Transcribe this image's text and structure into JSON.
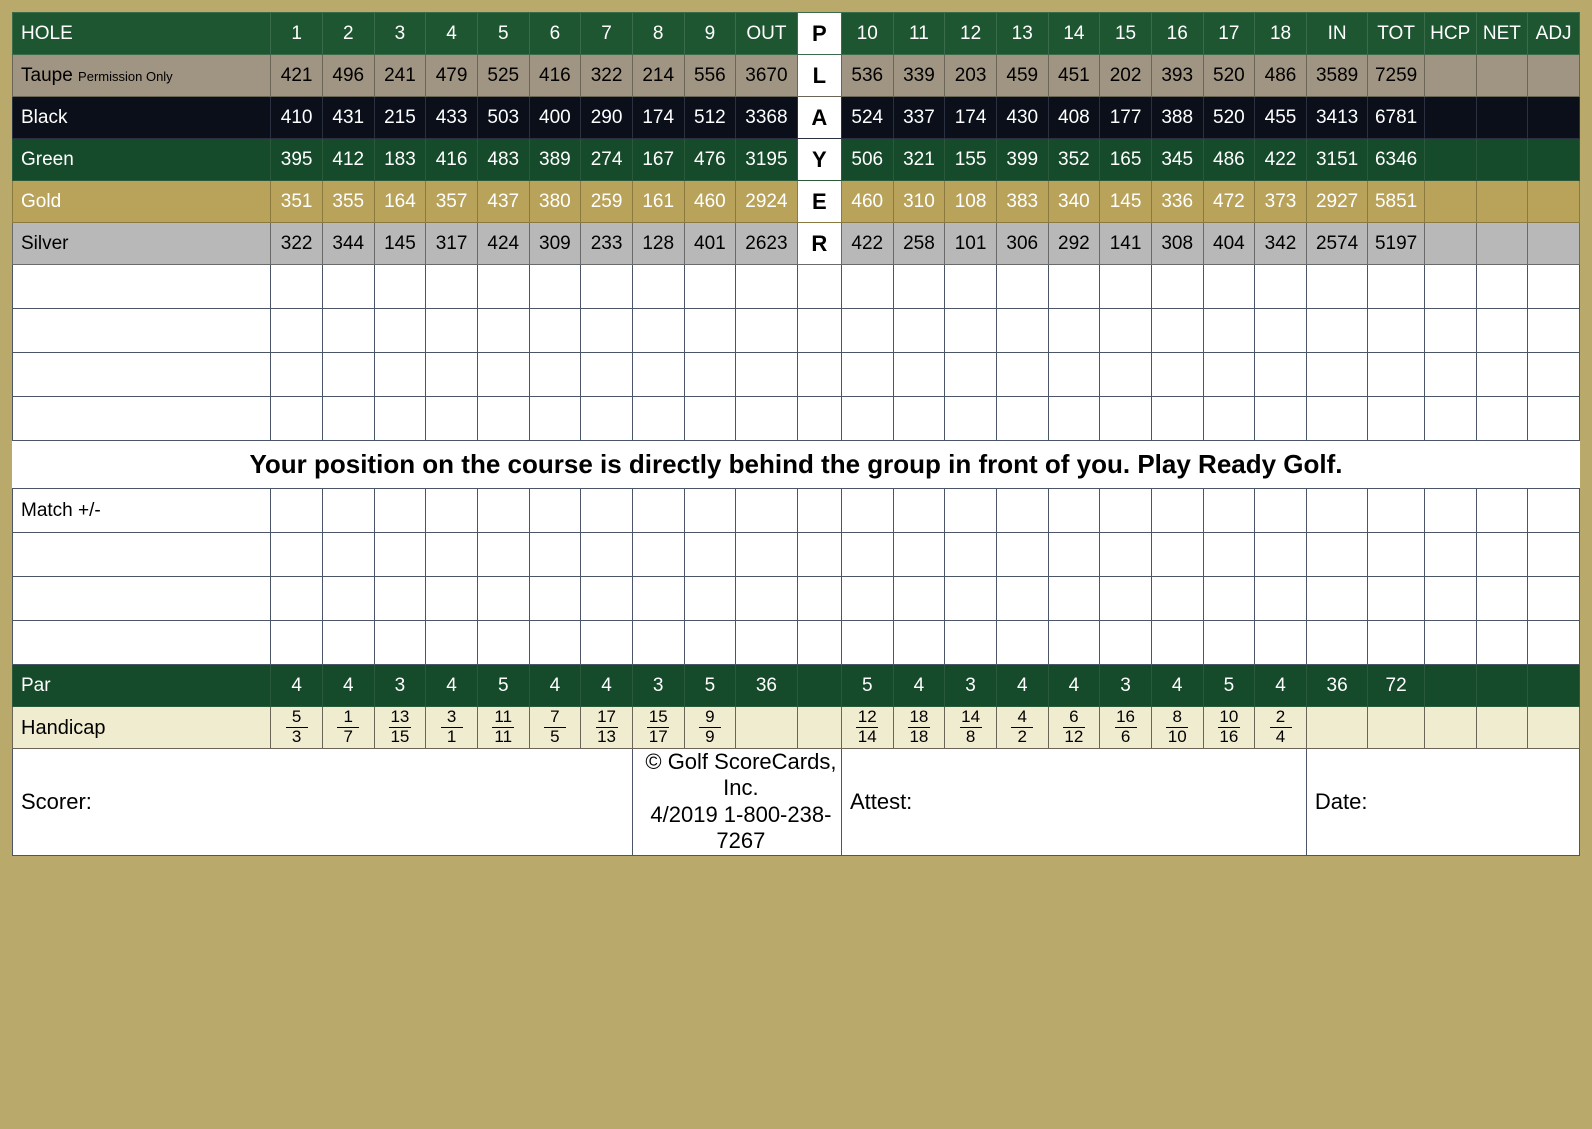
{
  "header": {
    "hole_label": "HOLE",
    "front9": [
      "1",
      "2",
      "3",
      "4",
      "5",
      "6",
      "7",
      "8",
      "9"
    ],
    "out_label": "OUT",
    "player_letters": [
      "P",
      "L",
      "A",
      "Y",
      "E",
      "R"
    ],
    "back9": [
      "10",
      "11",
      "12",
      "13",
      "14",
      "15",
      "16",
      "17",
      "18"
    ],
    "in_label": "IN",
    "tot_label": "TOT",
    "hcp_label": "HCP",
    "net_label": "NET",
    "adj_label": "ADJ"
  },
  "tees": [
    {
      "name": "Taupe",
      "sub": "Permission Only",
      "row_class": "row-taupe",
      "front": [
        "421",
        "496",
        "241",
        "479",
        "525",
        "416",
        "322",
        "214",
        "556"
      ],
      "out": "3670",
      "back": [
        "536",
        "339",
        "203",
        "459",
        "451",
        "202",
        "393",
        "520",
        "486"
      ],
      "in": "3589",
      "tot": "7259"
    },
    {
      "name": "Black",
      "sub": "",
      "row_class": "row-black",
      "front": [
        "410",
        "431",
        "215",
        "433",
        "503",
        "400",
        "290",
        "174",
        "512"
      ],
      "out": "3368",
      "back": [
        "524",
        "337",
        "174",
        "430",
        "408",
        "177",
        "388",
        "520",
        "455"
      ],
      "in": "3413",
      "tot": "6781"
    },
    {
      "name": "Green",
      "sub": "",
      "row_class": "row-green",
      "front": [
        "395",
        "412",
        "183",
        "416",
        "483",
        "389",
        "274",
        "167",
        "476"
      ],
      "out": "3195",
      "back": [
        "506",
        "321",
        "155",
        "399",
        "352",
        "165",
        "345",
        "486",
        "422"
      ],
      "in": "3151",
      "tot": "6346"
    },
    {
      "name": "Gold",
      "sub": "",
      "row_class": "row-gold",
      "front": [
        "351",
        "355",
        "164",
        "357",
        "437",
        "380",
        "259",
        "161",
        "460"
      ],
      "out": "2924",
      "back": [
        "460",
        "310",
        "108",
        "383",
        "340",
        "145",
        "336",
        "472",
        "373"
      ],
      "in": "2927",
      "tot": "5851"
    },
    {
      "name": "Silver",
      "sub": "",
      "row_class": "row-silver",
      "front": [
        "322",
        "344",
        "145",
        "317",
        "424",
        "309",
        "233",
        "128",
        "401"
      ],
      "out": "2623",
      "back": [
        "422",
        "258",
        "101",
        "306",
        "292",
        "141",
        "308",
        "404",
        "342"
      ],
      "in": "2574",
      "tot": "5197"
    }
  ],
  "message": "Your position on the course is directly behind the group in front of you. Play Ready Golf.",
  "match_label": "Match +/-",
  "par": {
    "label": "Par",
    "front": [
      "4",
      "4",
      "3",
      "4",
      "5",
      "4",
      "4",
      "3",
      "5"
    ],
    "out": "36",
    "back": [
      "5",
      "4",
      "3",
      "4",
      "4",
      "3",
      "4",
      "5",
      "4"
    ],
    "in": "36",
    "tot": "72"
  },
  "handicap": {
    "label": "Handicap",
    "front": [
      {
        "t": "5",
        "b": "3"
      },
      {
        "t": "1",
        "b": "7"
      },
      {
        "t": "13",
        "b": "15"
      },
      {
        "t": "3",
        "b": "1"
      },
      {
        "t": "11",
        "b": "11"
      },
      {
        "t": "7",
        "b": "5"
      },
      {
        "t": "17",
        "b": "13"
      },
      {
        "t": "15",
        "b": "17"
      },
      {
        "t": "9",
        "b": "9"
      }
    ],
    "back": [
      {
        "t": "12",
        "b": "14"
      },
      {
        "t": "18",
        "b": "18"
      },
      {
        "t": "14",
        "b": "8"
      },
      {
        "t": "4",
        "b": "2"
      },
      {
        "t": "6",
        "b": "12"
      },
      {
        "t": "16",
        "b": "6"
      },
      {
        "t": "8",
        "b": "10"
      },
      {
        "t": "10",
        "b": "16"
      },
      {
        "t": "2",
        "b": "4"
      }
    ]
  },
  "footer": {
    "scorer": "Scorer:",
    "copyright": "© Golf ScoreCards, Inc.",
    "copyright2": "4/2019   1-800-238-7267",
    "attest": "Attest:",
    "date": "Date:"
  }
}
